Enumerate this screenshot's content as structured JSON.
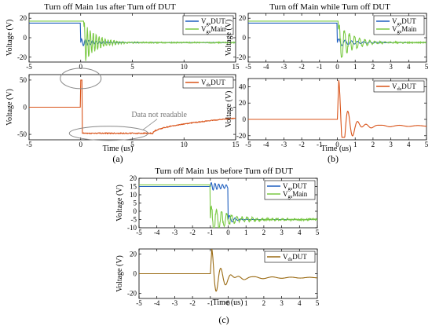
{
  "colors": {
    "vgs_dut": "#1f5fbf",
    "vgs_main": "#7ac943",
    "vds_dut_ab": "#d95319",
    "vds_dut_c": "#9a6a12",
    "axis": "#000000",
    "grid_bg": "#ffffff"
  },
  "chart_data": [
    {
      "id": "a",
      "panel_label": "(a)",
      "title": "Turn off Main 1us after Turn off DUT",
      "xlabel": "Time (us)",
      "xlim": [
        -5,
        15
      ],
      "xticks": [
        -5,
        0,
        5,
        10,
        15
      ],
      "xticklabels": [
        "-5",
        "0",
        "5",
        "10",
        "15"
      ],
      "top": {
        "type": "line",
        "ylabel": "Voltage (V)",
        "ylim": [
          -25,
          25
        ],
        "yticks": [
          -20,
          0,
          20
        ],
        "yticklabels": [
          "-20",
          "0",
          "20"
        ],
        "legend_position": "top-right",
        "series": [
          {
            "name": "V",
            "name_sub": "gs",
            "name_tail": "DUT",
            "color_key": "vgs_dut",
            "role": "dut_gate",
            "high": 15,
            "low": -5,
            "t_off": 0,
            "osc_amp": 4,
            "osc_decay": 1.5
          },
          {
            "name": "V",
            "name_sub": "gs",
            "name_tail": "Main",
            "color_key": "vgs_main",
            "role": "main_gate",
            "high": 17,
            "low": -5,
            "t_off": 0.3,
            "osc_amp": 22,
            "osc_decay": 1.2
          }
        ]
      },
      "bottom": {
        "type": "line",
        "ylabel": "Voltage (V)",
        "ylim": [
          -60,
          60
        ],
        "yticks": [
          -50,
          0,
          50
        ],
        "yticklabels": [
          "-50",
          "0",
          "50"
        ],
        "legend_position": "top-right",
        "series": [
          {
            "name": "V",
            "name_sub": "ds",
            "name_tail": "DUT",
            "color_key": "vds_dut_ab",
            "role": "vds_a"
          }
        ],
        "annotation": "Data not readable"
      }
    },
    {
      "id": "b",
      "panel_label": "(b)",
      "title": "Turn off Main while Turn off DUT",
      "xlabel": "Time (us)",
      "xlim": [
        -5,
        5
      ],
      "xticks": [
        -5,
        -4,
        -3,
        -2,
        -1,
        0,
        1,
        2,
        3,
        4,
        5
      ],
      "xticklabels": [
        "-5",
        "-4",
        "-3",
        "-2",
        "-1",
        "0",
        "1",
        "2",
        "3",
        "4",
        "5"
      ],
      "top": {
        "type": "line",
        "ylabel": "Voltage (V)",
        "ylim": [
          -25,
          25
        ],
        "yticks": [
          -20,
          0,
          20
        ],
        "yticklabels": [
          "-20",
          "0",
          "20"
        ],
        "legend_position": "top-right",
        "series": [
          {
            "name": "V",
            "name_sub": "gs",
            "name_tail": "DUT",
            "color_key": "vgs_dut",
            "role": "dut_gate",
            "high": 15,
            "low": -5,
            "t_off": 0,
            "osc_amp": 4,
            "osc_decay": 1.0
          },
          {
            "name": "V",
            "name_sub": "gs",
            "name_tail": "Main",
            "color_key": "vgs_main",
            "role": "main_gate",
            "high": 17,
            "low": -5,
            "t_off": 0.05,
            "osc_amp": 20,
            "osc_decay": 0.8
          }
        ]
      },
      "bottom": {
        "type": "line",
        "ylabel": "Voltage (V)",
        "ylim": [
          -25,
          50
        ],
        "yticks": [
          -20,
          0,
          20,
          40
        ],
        "yticklabels": [
          "-20",
          "0",
          "20",
          "40"
        ],
        "legend_position": "top-right",
        "series": [
          {
            "name": "V",
            "name_sub": "ds",
            "name_tail": "DUT",
            "color_key": "vds_dut_ab",
            "role": "vds_ring",
            "peak": 48,
            "neg_peak": -22,
            "settle": -8,
            "t_off": 0
          }
        ]
      }
    },
    {
      "id": "c",
      "panel_label": "(c)",
      "title": "Turn off Main 1us before Turn off DUT",
      "xlabel": "Time (us)",
      "xlim": [
        -5,
        5
      ],
      "xticks": [
        -5,
        -4,
        -3,
        -2,
        -1,
        0,
        1,
        2,
        3,
        4,
        5
      ],
      "xticklabels": [
        "-5",
        "-4",
        "-3",
        "-2",
        "-1",
        "0",
        "1",
        "2",
        "3",
        "4",
        "5"
      ],
      "top": {
        "type": "line",
        "ylabel": "Voltage (V)",
        "ylim": [
          -10,
          20
        ],
        "yticks": [
          -10,
          -5,
          0,
          5,
          10,
          15,
          20
        ],
        "yticklabels": [
          "-10",
          "-5",
          "0",
          "5",
          "10",
          "15",
          "20"
        ],
        "legend_position": "top-right",
        "series": [
          {
            "name": "V",
            "name_sub": "gs",
            "name_tail": "DUT",
            "color_key": "vgs_dut",
            "role": "dut_gate_c",
            "high": 15,
            "low": -5,
            "t_off": 0
          },
          {
            "name": "V",
            "name_sub": "gs",
            "name_tail": "Main",
            "color_key": "vgs_main",
            "role": "main_gate",
            "high": 16,
            "low": -5,
            "t_off": -1,
            "osc_amp": 9,
            "osc_decay": 1.0
          }
        ]
      },
      "bottom": {
        "type": "line",
        "ylabel": "Voltage (V)",
        "ylim": [
          -25,
          25
        ],
        "yticks": [
          -20,
          0,
          20
        ],
        "yticklabels": [
          "-20",
          "0",
          "20"
        ],
        "legend_position": "top-right",
        "series": [
          {
            "name": "V",
            "name_sub": "ds",
            "name_tail": "DUT",
            "color_key": "vds_dut_c",
            "role": "vds_ring",
            "peak": 25,
            "neg_peak": -22,
            "settle": -4,
            "t_off": -1
          }
        ]
      }
    }
  ]
}
